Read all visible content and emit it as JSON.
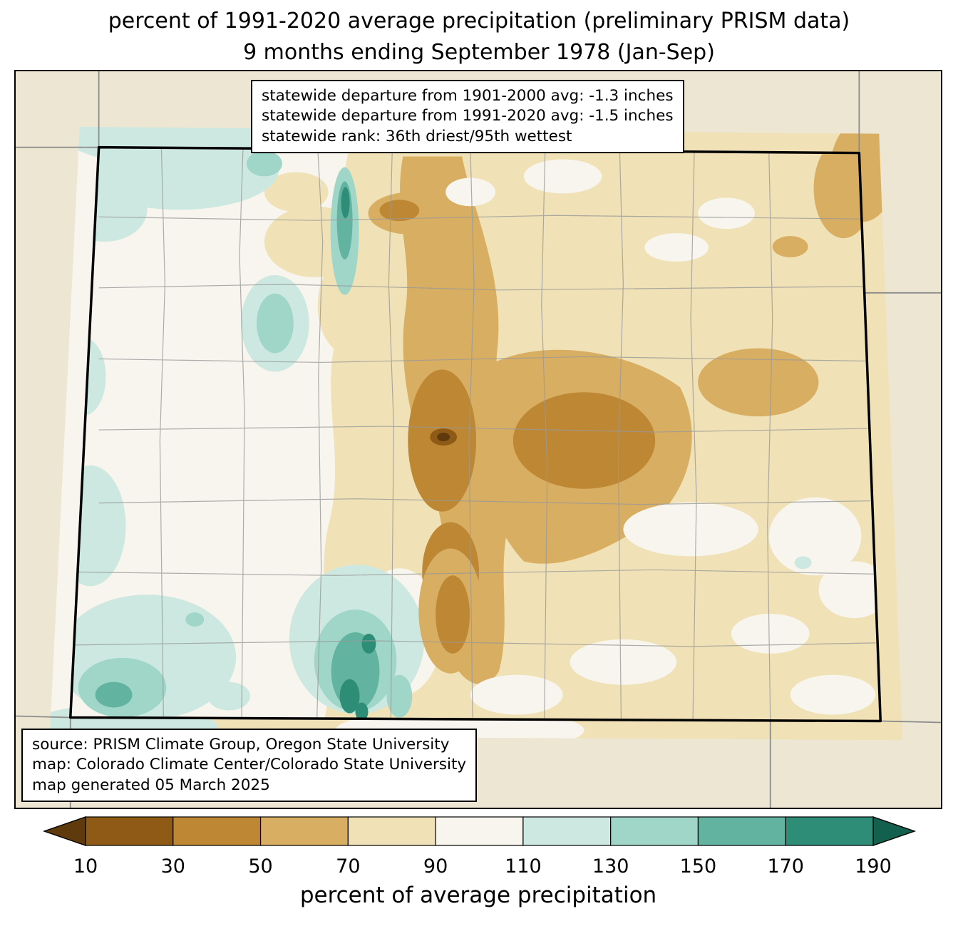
{
  "title": {
    "line1": "percent of 1991-2020 average precipitation (preliminary PRISM data)",
    "line2": "9 months ending September 1978 (Jan-Sep)"
  },
  "stats_box": {
    "line1": "statewide departure from 1901-2000 avg: -1.3 inches",
    "line2": "statewide departure from 1991-2020 avg: -1.5 inches",
    "line3": "statewide rank: 36th driest/95th wettest"
  },
  "source_box": {
    "line1": "source: PRISM Climate Group, Oregon State University",
    "line2": "map: Colorado Climate Center/Colorado State University",
    "line3": "map generated 05 March 2025"
  },
  "colorbar": {
    "label": "percent of average precipitation",
    "ticks": [
      "10",
      "30",
      "50",
      "70",
      "90",
      "110",
      "130",
      "150",
      "170",
      "190"
    ],
    "segment_colors": [
      "#8f5a16",
      "#bd8734",
      "#d8ae62",
      "#f0e2b6",
      "#f7f5ee",
      "#cde8e0",
      "#9fd6c8",
      "#62b3a0",
      "#2d8d77"
    ],
    "left_arrow_color": "#5e3a0c",
    "right_arrow_color": "#14604f"
  },
  "map": {
    "palette": {
      "c10": "#5e3a0c",
      "c30": "#8f5a16",
      "c50": "#bd8734",
      "c70": "#d8ae62",
      "c90": "#f0e2b6",
      "c110": "#f7f5ee",
      "c130": "#cde8e0",
      "c150": "#9fd6c8",
      "c170": "#62b3a0",
      "c190": "#2d8d77",
      "land": "#ece6d2",
      "state_line": "#8c8c8c",
      "county_line": "#999999",
      "border": "#000000"
    }
  }
}
